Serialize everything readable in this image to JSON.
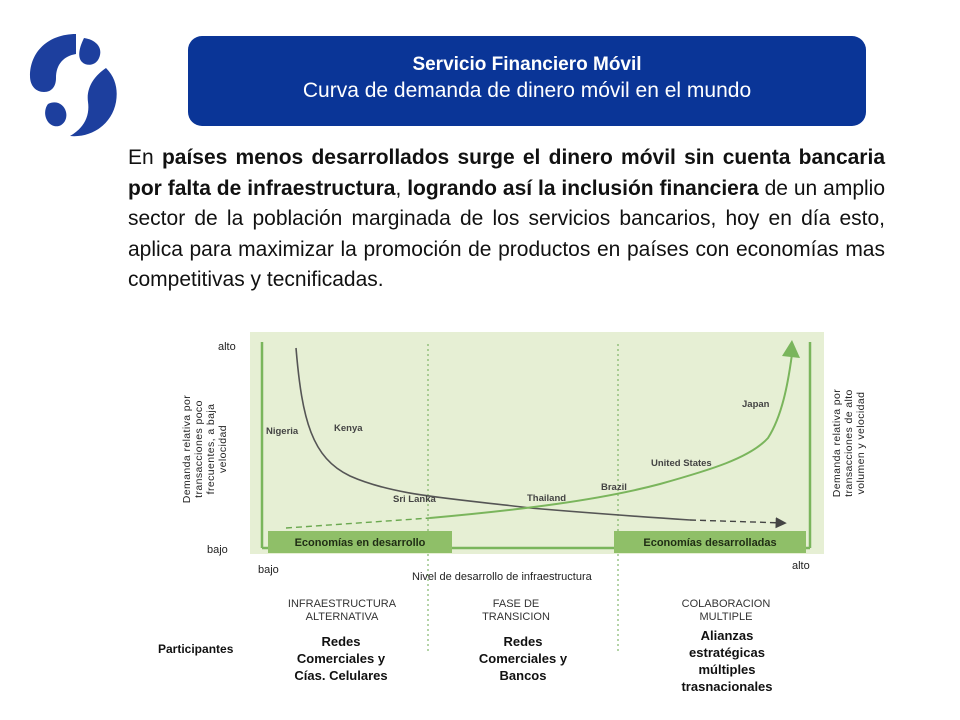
{
  "header": {
    "title": "Servicio Financiero Móvil",
    "subtitle": "Curva de demanda de dinero móvil en el mundo"
  },
  "paragraph": {
    "s1": "En ",
    "b1": "países menos desarrollados surge el dinero móvil sin cuenta bancaria por falta de infraestructura",
    "s2": ", ",
    "b2": "logrando así la inclusión financiera",
    "s3": "  de un amplio sector de la población marginada de los servicios bancarios, hoy en día esto, aplica para maximizar la promoción de  productos en países con economías mas competitivas y tecnificadas."
  },
  "chart": {
    "y_top": "alto",
    "y_bottom": "bajo",
    "x_left": "bajo",
    "x_right": "alto",
    "xlabel": "Nivel de desarrollo de infraestructura",
    "left_axis_label": [
      "Demanda relativa por",
      "transacciones poco",
      "frecuentes, a baja",
      "velocidad"
    ],
    "right_axis_label": [
      "Demanda relativa por",
      "transacciones de alto",
      "volumen y velocidad"
    ],
    "band_left": "Economías en desarrollo",
    "band_right": "Economías desarrolladas",
    "countries": [
      "Nigeria",
      "Kenya",
      "Sri Lanka",
      "Thailand",
      "Brazil",
      "United States",
      "Japan"
    ],
    "colors": {
      "panel": "#e6efd4",
      "green": "#7ab55c",
      "band": "#8fbf68",
      "dark": "#555555"
    }
  },
  "phases": {
    "p1": "INFRAESTRUCTURA ALTERNATIVA",
    "p2": "FASE DE TRANSICION",
    "p3": "COLABORACION MULTIPLE"
  },
  "participants": {
    "label": "Participantes",
    "p1": "Redes Comerciales y Cías. Celulares",
    "p2": "Redes Comerciales y Bancos",
    "p3": "Alianzas estratégicas múltiples trasnacionales"
  }
}
